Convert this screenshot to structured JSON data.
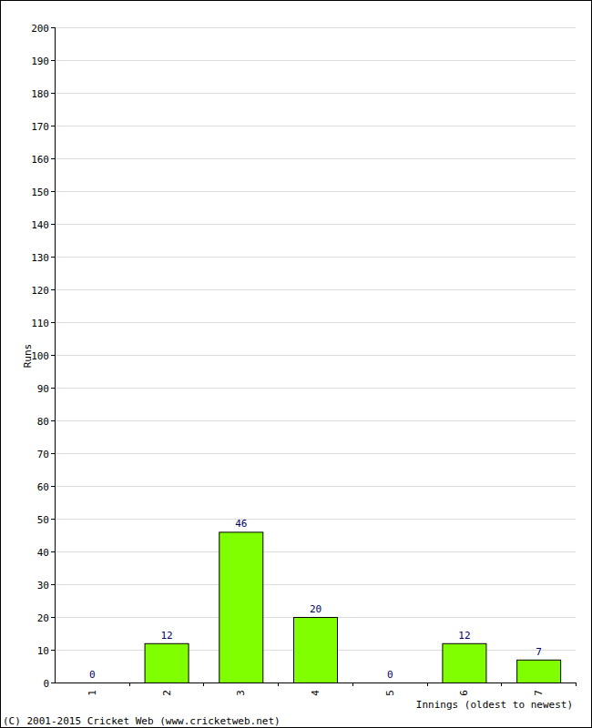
{
  "chart_data": {
    "type": "bar",
    "categories": [
      "1",
      "2",
      "3",
      "4",
      "5",
      "6",
      "7"
    ],
    "values": [
      0,
      12,
      46,
      20,
      0,
      12,
      7
    ],
    "color": "#80ff00",
    "ylim": [
      0,
      200
    ],
    "yticks": [
      0,
      10,
      20,
      30,
      40,
      50,
      60,
      70,
      80,
      90,
      100,
      110,
      120,
      130,
      140,
      150,
      160,
      170,
      180,
      190,
      200
    ],
    "grid": true,
    "data_labels": true,
    "x_label": "Innings (oldest to newest)",
    "y_label": "Runs",
    "annotations": [
      "(C) 2001-2015 Cricket Web (www.cricketweb.net)"
    ]
  }
}
